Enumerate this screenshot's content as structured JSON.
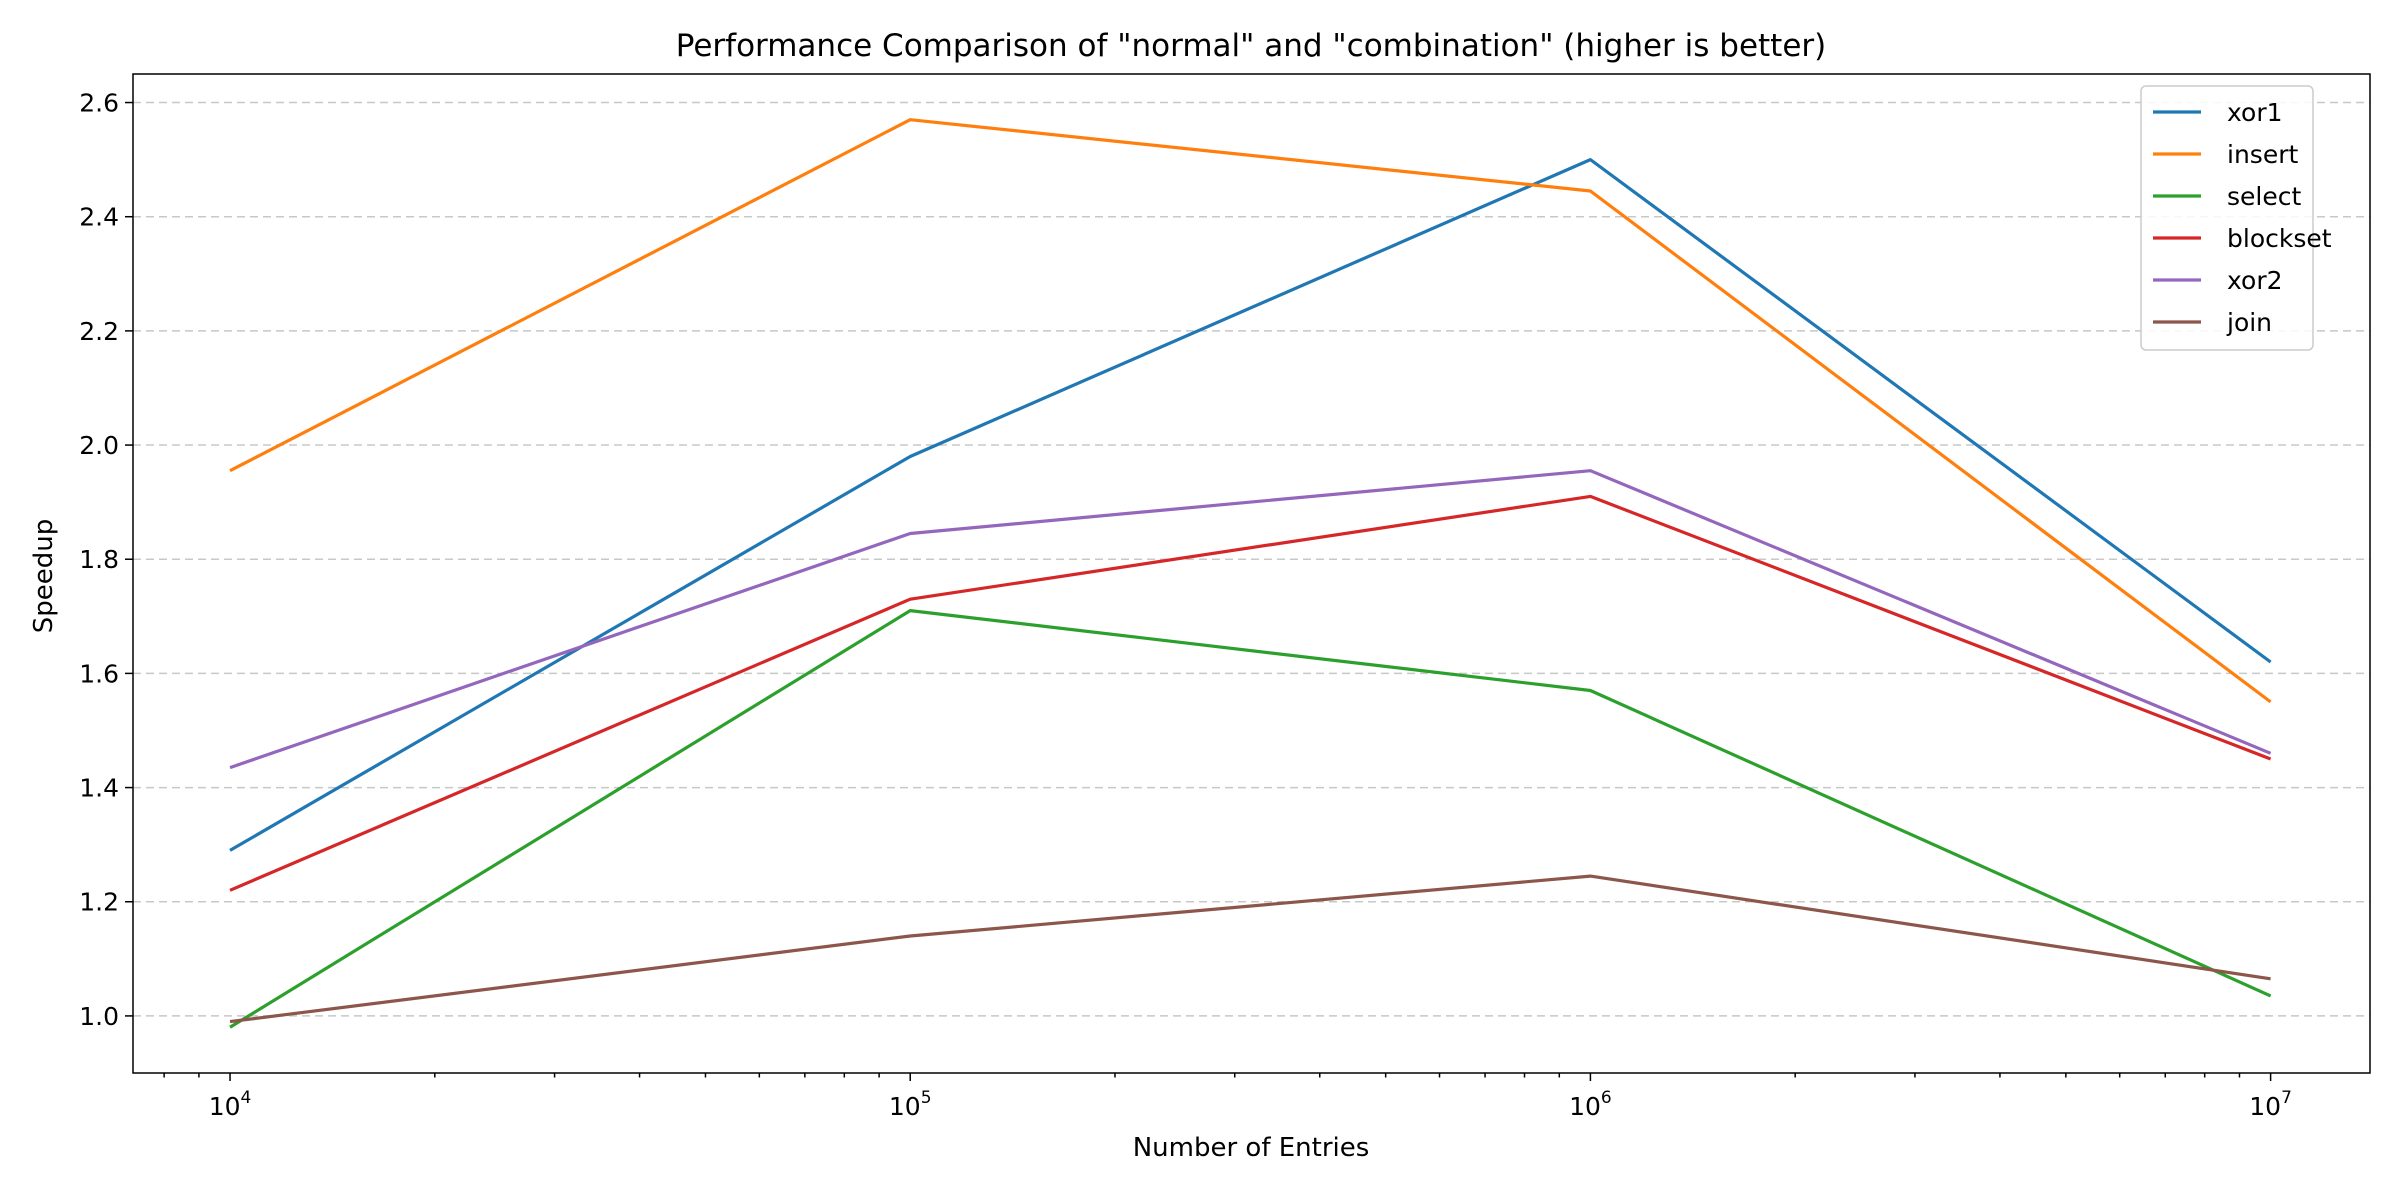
{
  "chart_data": {
    "type": "line",
    "title": "Performance Comparison of \"normal\" and \"combination\" (higher is better)",
    "xlabel": "Number of Entries",
    "ylabel": "Speedup",
    "xscale": "log",
    "x": [
      10000,
      100000,
      1000000,
      10000000
    ],
    "x_tick_labels": [
      {
        "base": "10",
        "exp": "4"
      },
      {
        "base": "10",
        "exp": "5"
      },
      {
        "base": "10",
        "exp": "6"
      },
      {
        "base": "10",
        "exp": "7"
      }
    ],
    "ylim": [
      0.9,
      2.65
    ],
    "y_ticks": [
      "1.0",
      "1.2",
      "1.4",
      "1.6",
      "1.8",
      "2.0",
      "2.2",
      "2.4",
      "2.6"
    ],
    "grid": "y-dashed",
    "legend_position": "top-right",
    "series": [
      {
        "name": "xor1",
        "color": "#1f77b4",
        "values": [
          1.29,
          1.98,
          2.5,
          1.62
        ]
      },
      {
        "name": "insert",
        "color": "#ff7f0e",
        "values": [
          1.955,
          2.57,
          2.445,
          1.55
        ]
      },
      {
        "name": "select",
        "color": "#2ca02c",
        "values": [
          0.98,
          1.71,
          1.57,
          1.035
        ]
      },
      {
        "name": "blockset",
        "color": "#d62728",
        "values": [
          1.22,
          1.73,
          1.91,
          1.45
        ]
      },
      {
        "name": "xor2",
        "color": "#9467bd",
        "values": [
          1.435,
          1.845,
          1.955,
          1.46
        ]
      },
      {
        "name": "join",
        "color": "#8c564b",
        "values": [
          0.99,
          1.14,
          1.245,
          1.065
        ]
      }
    ]
  }
}
